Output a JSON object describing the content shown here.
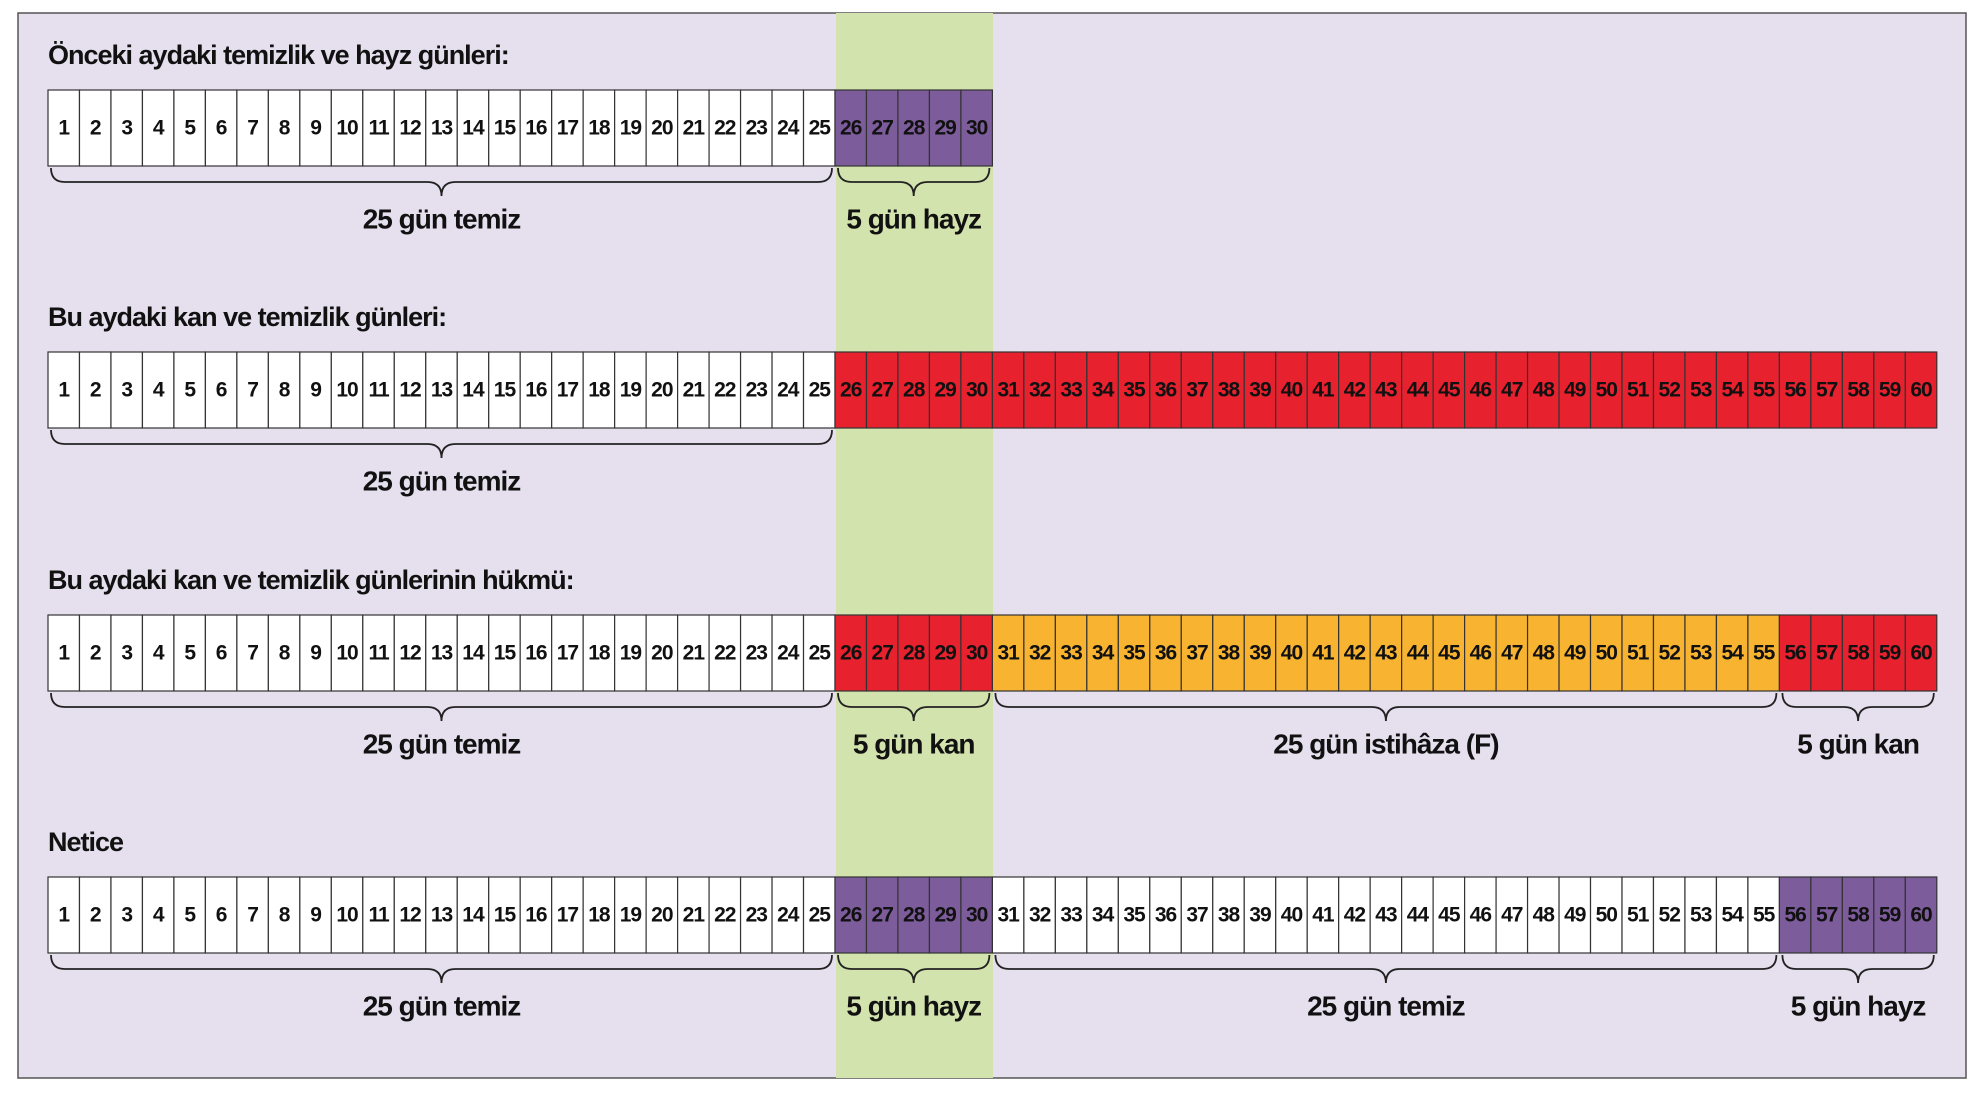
{
  "rows": [
    {
      "title": "Önceki aydaki temizlik ve hayz günleri:",
      "groups": [
        {
          "days": [
            1,
            2,
            3,
            4,
            5,
            6,
            7,
            8,
            9,
            10,
            11,
            12,
            13,
            14,
            15,
            16,
            17,
            18,
            19,
            20,
            21,
            22,
            23,
            24,
            25
          ],
          "color": "#ffffff",
          "label": "25 gün temiz"
        },
        {
          "days": [
            26,
            27,
            28,
            29,
            30
          ],
          "color": "#7d5c9c",
          "label": "5 gün hayz"
        }
      ]
    },
    {
      "title": "Bu aydaki kan ve temizlik günleri:",
      "groups": [
        {
          "days": [
            1,
            2,
            3,
            4,
            5,
            6,
            7,
            8,
            9,
            10,
            11,
            12,
            13,
            14,
            15,
            16,
            17,
            18,
            19,
            20,
            21,
            22,
            23,
            24,
            25
          ],
          "color": "#ffffff",
          "label": "25 gün temiz"
        },
        {
          "days": [
            26,
            27,
            28,
            29,
            30,
            31,
            32,
            33,
            34,
            35,
            36,
            37,
            38,
            39,
            40,
            41,
            42,
            43,
            44,
            45,
            46,
            47,
            48,
            49,
            50,
            51,
            52,
            53,
            54,
            55,
            56,
            57,
            58,
            59,
            60
          ],
          "color": "#e8212f"
        }
      ]
    },
    {
      "title": "Bu aydaki kan ve temizlik günlerinin hükmü:",
      "groups": [
        {
          "days": [
            1,
            2,
            3,
            4,
            5,
            6,
            7,
            8,
            9,
            10,
            11,
            12,
            13,
            14,
            15,
            16,
            17,
            18,
            19,
            20,
            21,
            22,
            23,
            24,
            25
          ],
          "color": "#ffffff",
          "label": "25 gün temiz"
        },
        {
          "days": [
            26,
            27,
            28,
            29,
            30
          ],
          "color": "#e8212f",
          "label": "5 gün kan"
        },
        {
          "days": [
            31,
            32,
            33,
            34,
            35,
            36,
            37,
            38,
            39,
            40,
            41,
            42,
            43,
            44,
            45,
            46,
            47,
            48,
            49,
            50,
            51,
            52,
            53,
            54,
            55
          ],
          "color": "#f8b431",
          "label": "25 gün istihâza (F)"
        },
        {
          "days": [
            56,
            57,
            58,
            59,
            60
          ],
          "color": "#e8212f",
          "label": "5 gün kan"
        }
      ]
    },
    {
      "title": "Netice",
      "groups": [
        {
          "days": [
            1,
            2,
            3,
            4,
            5,
            6,
            7,
            8,
            9,
            10,
            11,
            12,
            13,
            14,
            15,
            16,
            17,
            18,
            19,
            20,
            21,
            22,
            23,
            24,
            25
          ],
          "color": "#ffffff",
          "label": "25 gün temiz"
        },
        {
          "days": [
            26,
            27,
            28,
            29,
            30
          ],
          "color": "#7d5c9c",
          "label": "5 gün hayz"
        },
        {
          "days": [
            31,
            32,
            33,
            34,
            35,
            36,
            37,
            38,
            39,
            40,
            41,
            42,
            43,
            44,
            45,
            46,
            47,
            48,
            49,
            50,
            51,
            52,
            53,
            54,
            55
          ],
          "color": "#ffffff",
          "label": "25 gün temiz"
        },
        {
          "days": [
            56,
            57,
            58,
            59,
            60
          ],
          "color": "#7d5c9c",
          "label": "5 gün hayz"
        }
      ]
    }
  ]
}
